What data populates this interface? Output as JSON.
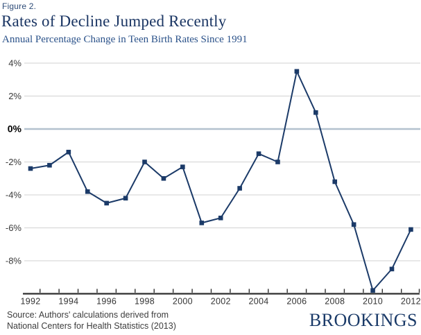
{
  "header": {
    "figure_label": "Figure 2.",
    "title": "Rates of Decline Jumped Recently",
    "subtitle": "Annual Percentage Change in Teen Birth Rates Since 1991"
  },
  "footer": {
    "source_line1": "Source: Authors' calculations derived from",
    "source_line2": "National Centers for Health Statistics (2013)",
    "brand": "BROOKINGS"
  },
  "colors": {
    "line": "#1b3a68",
    "marker": "#1b3a68",
    "title": "#1a3563",
    "subtitle": "#2a5189",
    "figure_label": "#2c4a77",
    "zero_line": "#b3c1ce",
    "gridline": "#d9d9d9",
    "axis": "#2e2e2e",
    "x_label": "#333333",
    "y_label": "#3a3a3a",
    "y_label_zero": "#000000",
    "source_text": "#3d3d3d",
    "brand": "#1a3a68"
  },
  "chart_data": {
    "type": "line",
    "title": "Rates of Decline Jumped Recently",
    "subtitle": "Annual Percentage Change in Teen Birth Rates Since 1991",
    "x": [
      1992,
      1993,
      1994,
      1995,
      1996,
      1997,
      1998,
      1999,
      2000,
      2001,
      2002,
      2003,
      2004,
      2005,
      2006,
      2007,
      2008,
      2009,
      2010,
      2011,
      2012
    ],
    "series": [
      {
        "name": "Annual percentage change in teen birth rate",
        "values": [
          -2.4,
          -2.2,
          -1.4,
          -3.8,
          -4.5,
          -4.2,
          -2.0,
          -3.0,
          -2.3,
          -5.7,
          -5.4,
          -3.6,
          -1.5,
          -2.0,
          3.5,
          1.0,
          -3.2,
          -5.8,
          -9.8,
          -8.5,
          -6.1
        ]
      }
    ],
    "xlabel": "",
    "ylabel": "",
    "ylim": [
      -10,
      4
    ],
    "yticks": [
      {
        "value": 4,
        "label": "4%"
      },
      {
        "value": 2,
        "label": "2%"
      },
      {
        "value": 0,
        "label": "0%"
      },
      {
        "value": -2,
        "label": "-2%"
      },
      {
        "value": -4,
        "label": "-4%"
      },
      {
        "value": -6,
        "label": "-6%"
      },
      {
        "value": -8,
        "label": "-8%"
      }
    ],
    "xtick_labels": [
      "1992",
      "1994",
      "1996",
      "1998",
      "2000",
      "2002",
      "2004",
      "2006",
      "2008",
      "2010",
      "2012"
    ],
    "grid": true,
    "zero_line_emphasized": true,
    "marker": "square",
    "legend": false
  }
}
